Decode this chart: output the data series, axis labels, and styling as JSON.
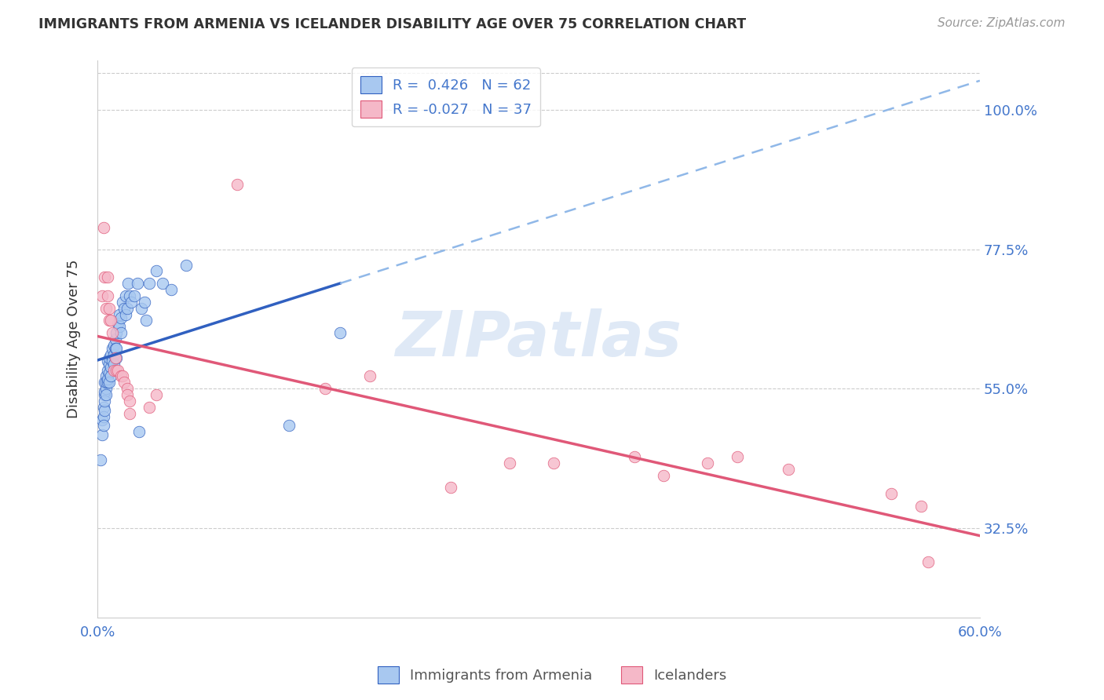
{
  "title": "IMMIGRANTS FROM ARMENIA VS ICELANDER DISABILITY AGE OVER 75 CORRELATION CHART",
  "source": "Source: ZipAtlas.com",
  "ylabel": "Disability Age Over 75",
  "legend1_label": "Immigrants from Armenia",
  "legend2_label": "Icelanders",
  "R1": 0.426,
  "N1": 62,
  "R2": -0.027,
  "N2": 37,
  "color_blue": "#A8C8F0",
  "color_pink": "#F5B8C8",
  "line_blue": "#3060C0",
  "line_pink": "#E05878",
  "line_dash_color": "#90B8E8",
  "watermark": "ZIPatlas",
  "xlim": [
    0.0,
    0.6
  ],
  "ylim": [
    0.18,
    1.08
  ],
  "ytick_vals": [
    0.325,
    0.55,
    0.775,
    1.0
  ],
  "ytick_labels": [
    "32.5%",
    "55.0%",
    "77.5%",
    "100.0%"
  ],
  "blue_x": [
    0.002,
    0.003,
    0.003,
    0.004,
    0.004,
    0.004,
    0.005,
    0.005,
    0.005,
    0.005,
    0.005,
    0.006,
    0.006,
    0.006,
    0.006,
    0.007,
    0.007,
    0.007,
    0.007,
    0.008,
    0.008,
    0.008,
    0.008,
    0.009,
    0.009,
    0.009,
    0.01,
    0.01,
    0.011,
    0.011,
    0.011,
    0.012,
    0.012,
    0.013,
    0.013,
    0.013,
    0.014,
    0.015,
    0.015,
    0.016,
    0.016,
    0.017,
    0.018,
    0.019,
    0.019,
    0.02,
    0.021,
    0.022,
    0.023,
    0.025,
    0.027,
    0.028,
    0.03,
    0.032,
    0.033,
    0.035,
    0.04,
    0.044,
    0.05,
    0.06,
    0.13,
    0.165
  ],
  "blue_y": [
    0.435,
    0.475,
    0.5,
    0.52,
    0.505,
    0.49,
    0.54,
    0.515,
    0.56,
    0.545,
    0.53,
    0.57,
    0.55,
    0.54,
    0.56,
    0.58,
    0.56,
    0.595,
    0.565,
    0.59,
    0.575,
    0.56,
    0.6,
    0.605,
    0.585,
    0.57,
    0.615,
    0.595,
    0.62,
    0.605,
    0.59,
    0.63,
    0.615,
    0.64,
    0.615,
    0.6,
    0.655,
    0.67,
    0.65,
    0.665,
    0.64,
    0.69,
    0.68,
    0.7,
    0.67,
    0.68,
    0.72,
    0.7,
    0.69,
    0.7,
    0.72,
    0.48,
    0.68,
    0.69,
    0.66,
    0.72,
    0.74,
    0.72,
    0.71,
    0.75,
    0.49,
    0.64
  ],
  "pink_x": [
    0.003,
    0.004,
    0.005,
    0.006,
    0.007,
    0.007,
    0.008,
    0.008,
    0.009,
    0.01,
    0.011,
    0.012,
    0.013,
    0.014,
    0.016,
    0.017,
    0.018,
    0.02,
    0.02,
    0.022,
    0.022,
    0.035,
    0.04,
    0.095,
    0.155,
    0.185,
    0.24,
    0.28,
    0.31,
    0.365,
    0.385,
    0.415,
    0.435,
    0.47,
    0.54,
    0.56,
    0.565
  ],
  "pink_y": [
    0.7,
    0.81,
    0.73,
    0.68,
    0.73,
    0.7,
    0.68,
    0.66,
    0.66,
    0.64,
    0.58,
    0.6,
    0.58,
    0.58,
    0.57,
    0.57,
    0.56,
    0.55,
    0.54,
    0.53,
    0.51,
    0.52,
    0.54,
    0.88,
    0.55,
    0.57,
    0.39,
    0.43,
    0.43,
    0.44,
    0.41,
    0.43,
    0.44,
    0.42,
    0.38,
    0.36,
    0.27
  ]
}
